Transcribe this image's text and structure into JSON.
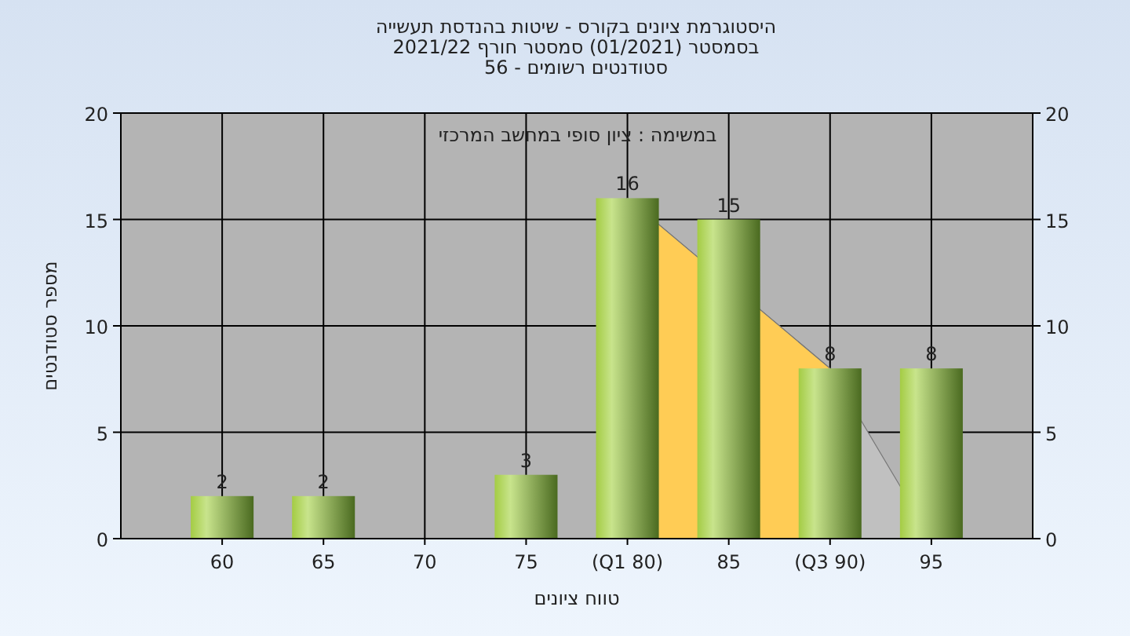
{
  "chart_data": {
    "type": "bar",
    "title": "היסטוגרמת ציונים בקורס - שיטות בהנדסת תעשייה",
    "subtitle": "בסמסטר  (01/2021)  סמסטר חורף 2021/22\nסטודנטים רשומים - 56",
    "xlabel": "טווח ציונים",
    "ylabel": "מספר סטודנטים",
    "annotations": [
      "במשימה : ציון סופי במחשב המרכזי"
    ],
    "categories": [
      "60",
      "65",
      "70",
      "75",
      "(Q1 80)",
      "85",
      "(Q3 90)",
      "95"
    ],
    "series": [
      {
        "type": "area",
        "color": "#c0c0c0",
        "values": [
          null,
          null,
          null,
          null,
          16,
          null,
          8,
          0
        ]
      },
      {
        "type": "area",
        "color": "#ffcc55",
        "values": [
          null,
          null,
          null,
          null,
          16,
          null,
          8,
          null
        ]
      },
      {
        "color": "#8db040",
        "values": [
          2,
          2,
          0,
          3,
          16,
          15,
          8,
          8
        ],
        "value_labels": [
          "2",
          "2",
          null,
          "3",
          "16",
          "15",
          "8",
          "8"
        ]
      }
    ],
    "ylim": [
      0,
      20
    ],
    "yticks": [
      0,
      5,
      10,
      15,
      20
    ],
    "y2lim": [
      0,
      20
    ],
    "y2ticks": [
      0,
      5,
      10,
      15,
      20
    ],
    "grid": true
  }
}
